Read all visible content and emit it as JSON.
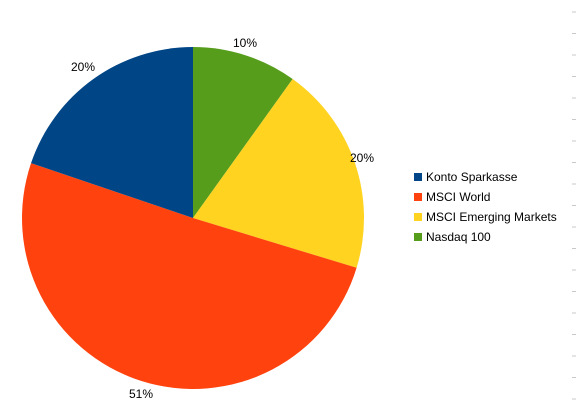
{
  "chart_data": {
    "type": "pie",
    "categories": [
      "Konto Sparkasse",
      "MSCI World",
      "MSCI Emerging Markets",
      "Nasdaq 100"
    ],
    "values": [
      20,
      51,
      20,
      10
    ],
    "labels": [
      "20%",
      "51%",
      "20%",
      "10%"
    ],
    "colors": [
      "#004586",
      "#ff420e",
      "#ffd320",
      "#579d1c"
    ],
    "start_angle_deg": 0,
    "direction": "counterclockwise",
    "legend_position": "right",
    "title": ""
  }
}
